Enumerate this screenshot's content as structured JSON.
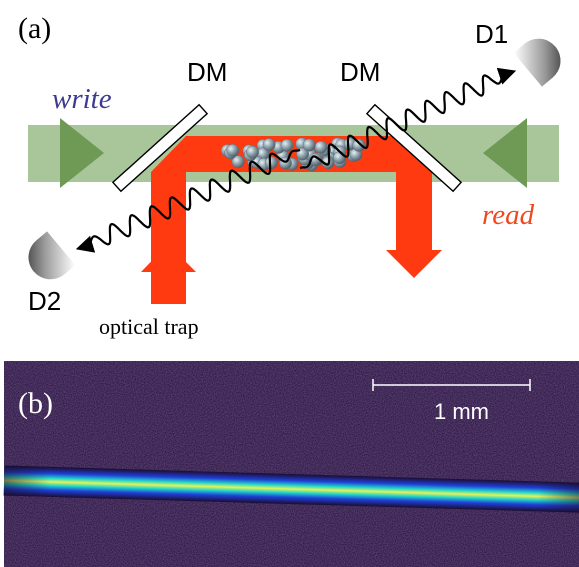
{
  "panel_a": {
    "label": "(a)",
    "beam_labels": {
      "write": "write",
      "read": "read"
    },
    "mirror_labels": {
      "left": "DM",
      "right": "DM"
    },
    "detector_labels": {
      "d1": "D1",
      "d2": "D2"
    },
    "trap_label": "optical trap",
    "colors": {
      "guide_beam": "#a9c59a",
      "guide_arrow": "#6e9a55",
      "trap_beam": "#ff3a10",
      "write_text": "#3d3a8f",
      "read_text": "#f0481e",
      "atoms": "#8fa2ad"
    }
  },
  "panel_b": {
    "label": "(b)",
    "scale_bar_label": "1 mm",
    "colors": {
      "background": "#1c0d30",
      "cloud_edge": "#1f3fd8",
      "cloud_mid": "#21d8c8",
      "cloud_core": "#e6f25a",
      "cloud_peak": "#e0407a"
    }
  }
}
